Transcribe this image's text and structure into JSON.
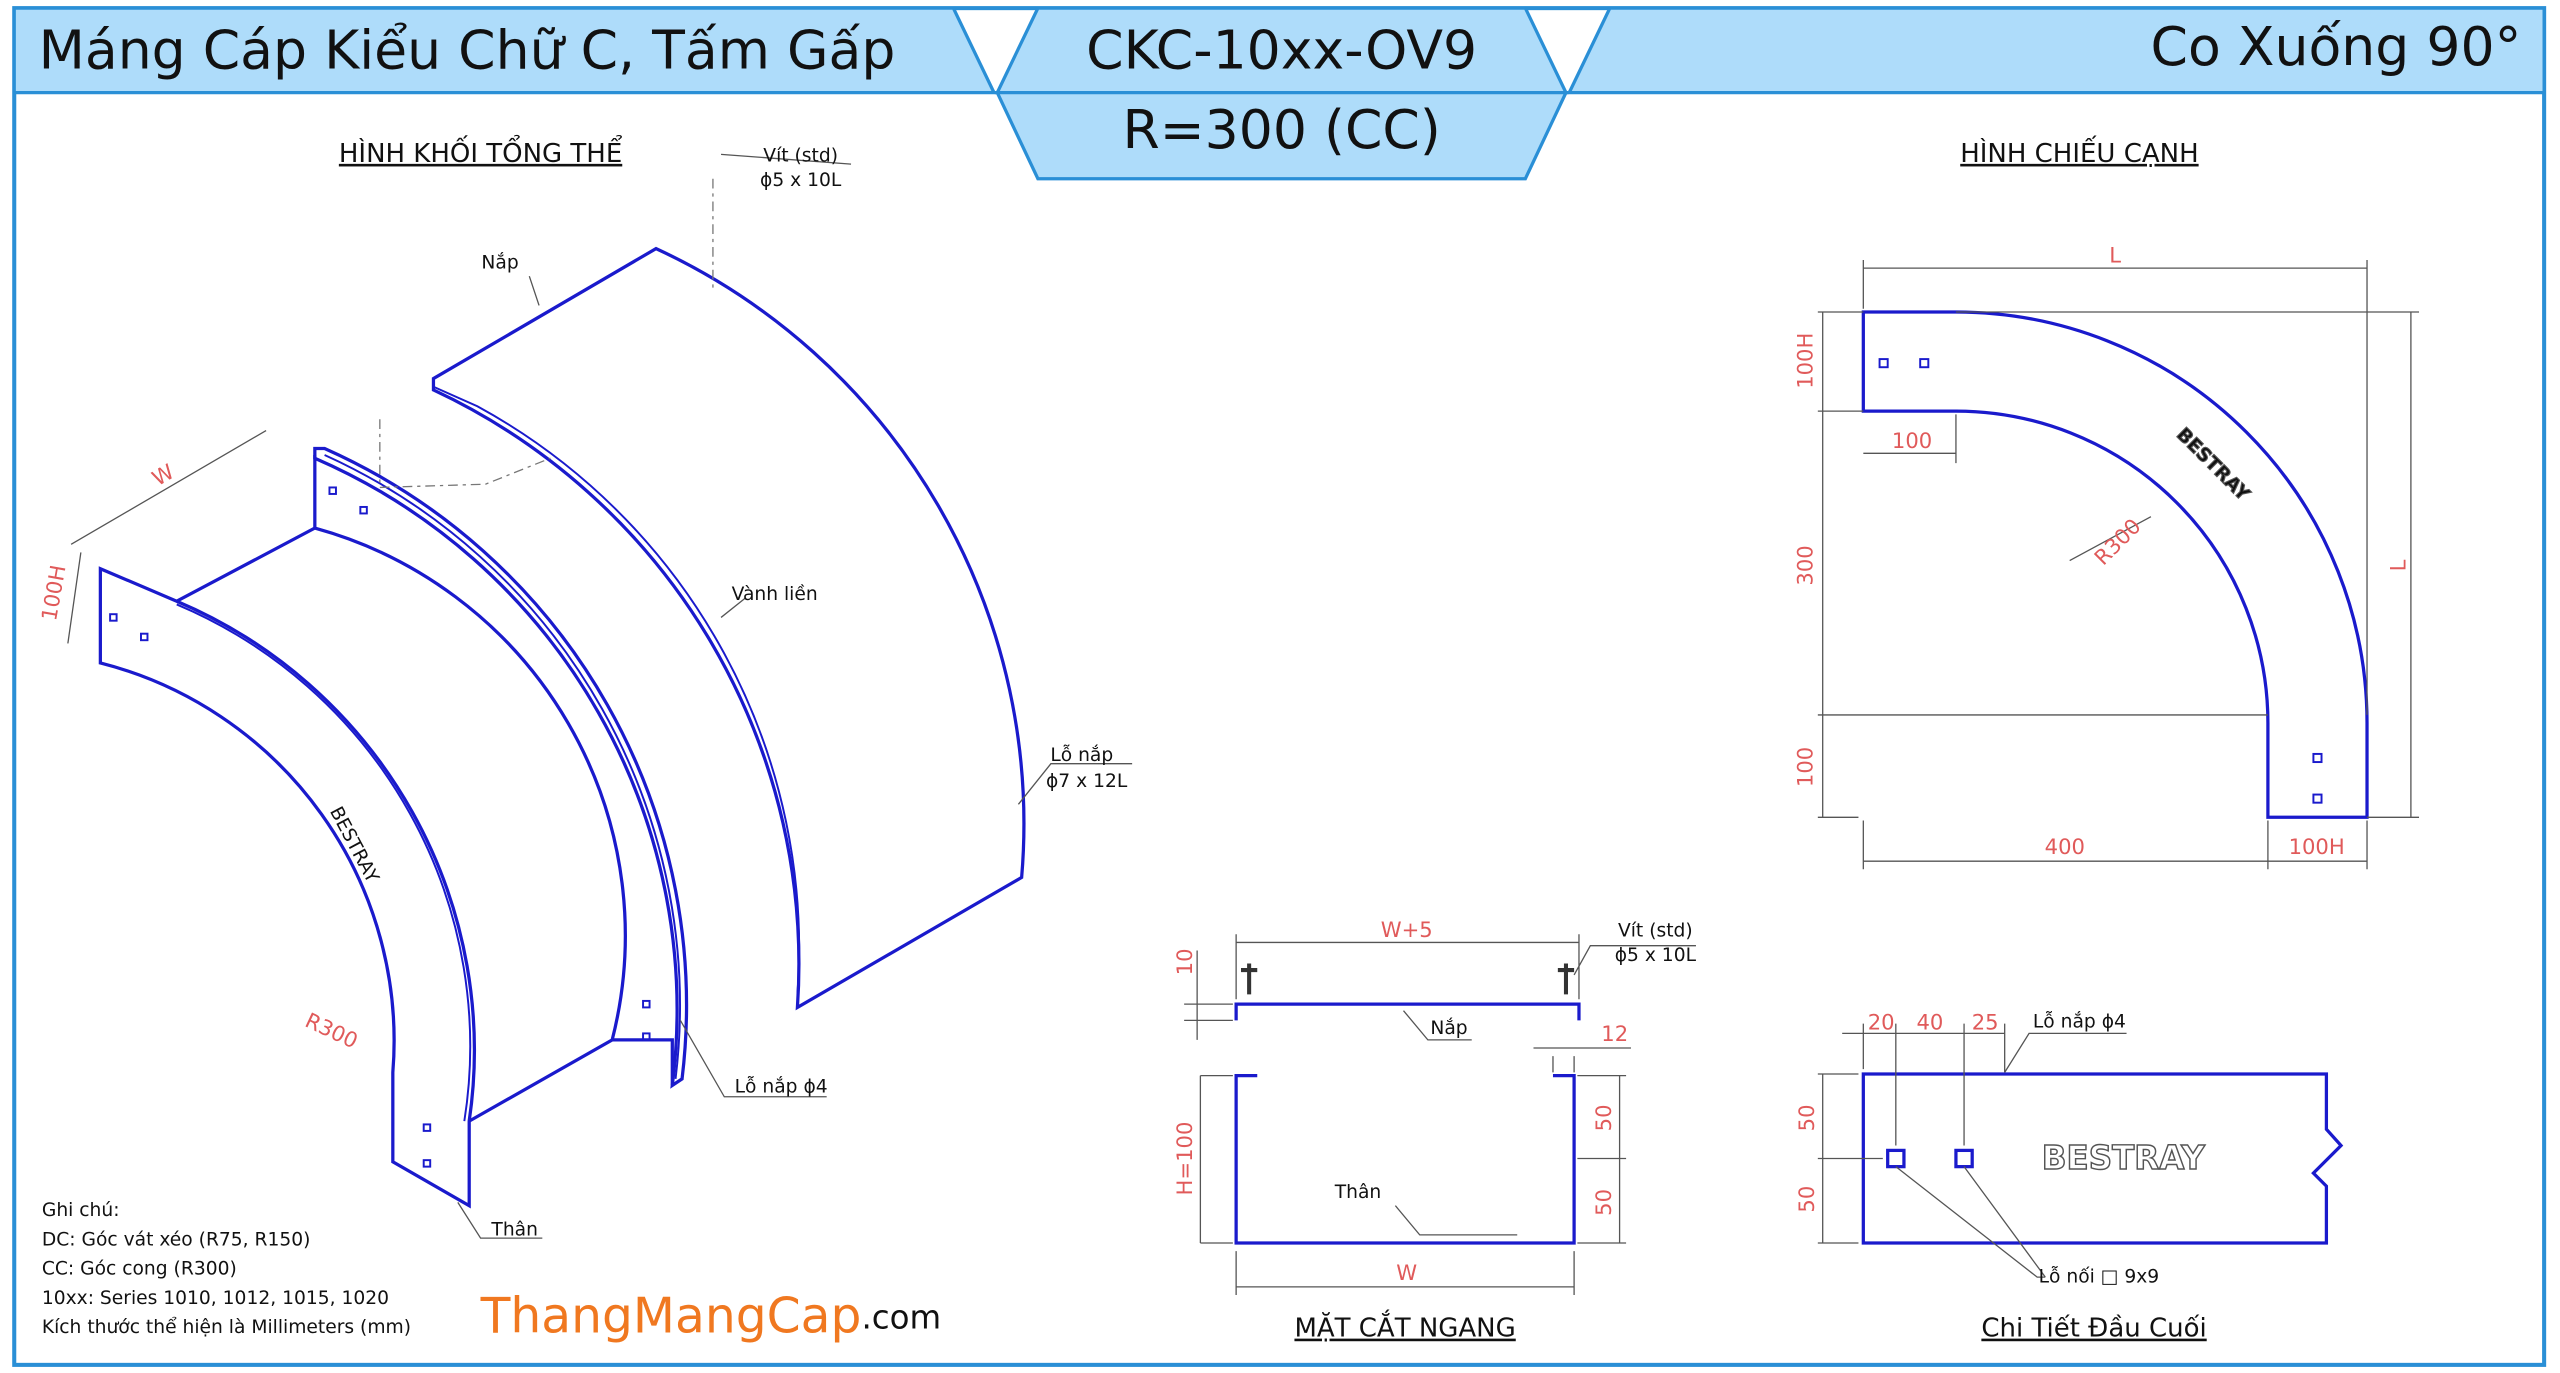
{
  "header": {
    "product": "Máng Cáp Kiểu Chữ C, Tấm Gấp",
    "code": "CKC-10xx-OV9",
    "radius": "R=300 (CC)",
    "fitting": "Co Xuống 90°"
  },
  "iso_view": {
    "title": "HÌNH KHỐI TỔNG THỂ",
    "screw": "Vít (std)",
    "screw_size": "ϕ5 x 10L",
    "cover": "Nắp",
    "rim": "Vành liền",
    "cover_hole": "Lỗ nắp",
    "cover_hole_size": "ϕ7 x 12L",
    "body_hole": "Lỗ nắp ϕ4",
    "body": "Thân",
    "width": "W",
    "height": "100H",
    "radius": "R300",
    "brand": "BESTRAY"
  },
  "side_view": {
    "title": "HÌNH CHIẾU CẠNH",
    "length_top": "L",
    "length_right": "L",
    "height_top": "100H",
    "offset_top": "100",
    "straight": "300",
    "offset_bottom": "100",
    "bottom_length": "400",
    "height_bottom": "100H",
    "radius": "R300",
    "brand": "BESTRAY"
  },
  "cross_section": {
    "title": "MẶT CẮT NGANG",
    "cover_width": "W+5",
    "screw": "Vít (std)",
    "screw_size": "ϕ5 x 10L",
    "lip": "10",
    "cover": "Nắp",
    "gap": "12",
    "height": "H=100",
    "half_top": "50",
    "half_bottom": "50",
    "body": "Thân",
    "width": "W"
  },
  "end_detail": {
    "title": "Chi Tiết Đầu Cuối",
    "d1": "20",
    "d2": "40",
    "d3": "25",
    "cover_hole": "Lỗ nắp ϕ4",
    "h1": "50",
    "h2": "50",
    "brand": "BESTRAY",
    "joint_hole": "Lỗ nối □ 9x9"
  },
  "notes": {
    "heading": "Ghi chú:",
    "lines": [
      "DC: Góc vát xéo (R75, R150)",
      "CC: Góc cong (R300)",
      "10xx: Series 1010, 1012, 1015, 1020",
      "Kích thước thể hiện là Millimeters (mm)"
    ]
  },
  "logo": {
    "name": "ThangMangCap",
    "suffix": ".com"
  }
}
